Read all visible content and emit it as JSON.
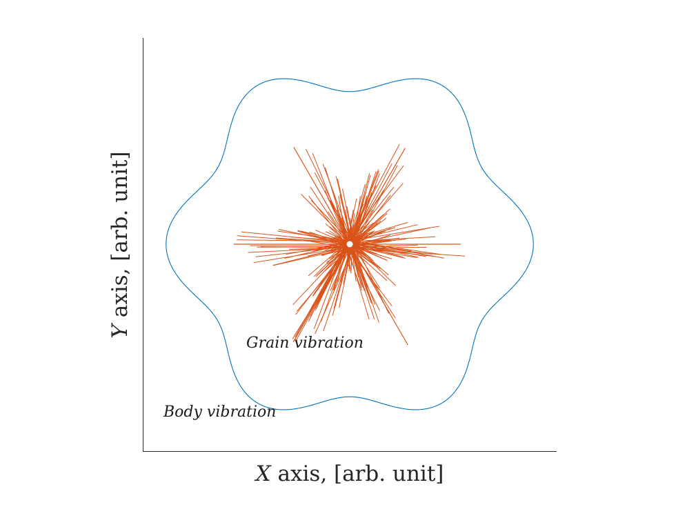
{
  "chart_data": {
    "type": "line",
    "xlabel": "X axis, [arb. unit]",
    "ylabel": "Y axis, [arb. unit]",
    "xlabel_var": "X",
    "xlabel_rest": " axis, [arb. unit]",
    "ylabel_var": "Y",
    "ylabel_rest": " axis, [arb. unit]",
    "xlim": [
      -1.2,
      1.2
    ],
    "ylim": [
      -1.2,
      1.2
    ],
    "grid": false,
    "series": [
      {
        "curve": "polar",
        "r_base": 0.975,
        "r_amplitude": 0.09,
        "lobes": 6,
        "phase_deg": 0,
        "color": "#0072BD"
      },
      {
        "curve": "spikes",
        "lobes": 6,
        "max_length": 0.68,
        "color": "#D95319",
        "center_marker_color": "#ffffff"
      }
    ],
    "annotations": [
      {
        "text": "Grain vibration",
        "x": -0.6,
        "y": -0.6
      },
      {
        "text": "Body vibration",
        "x": -1.08,
        "y": -1.0
      }
    ]
  }
}
